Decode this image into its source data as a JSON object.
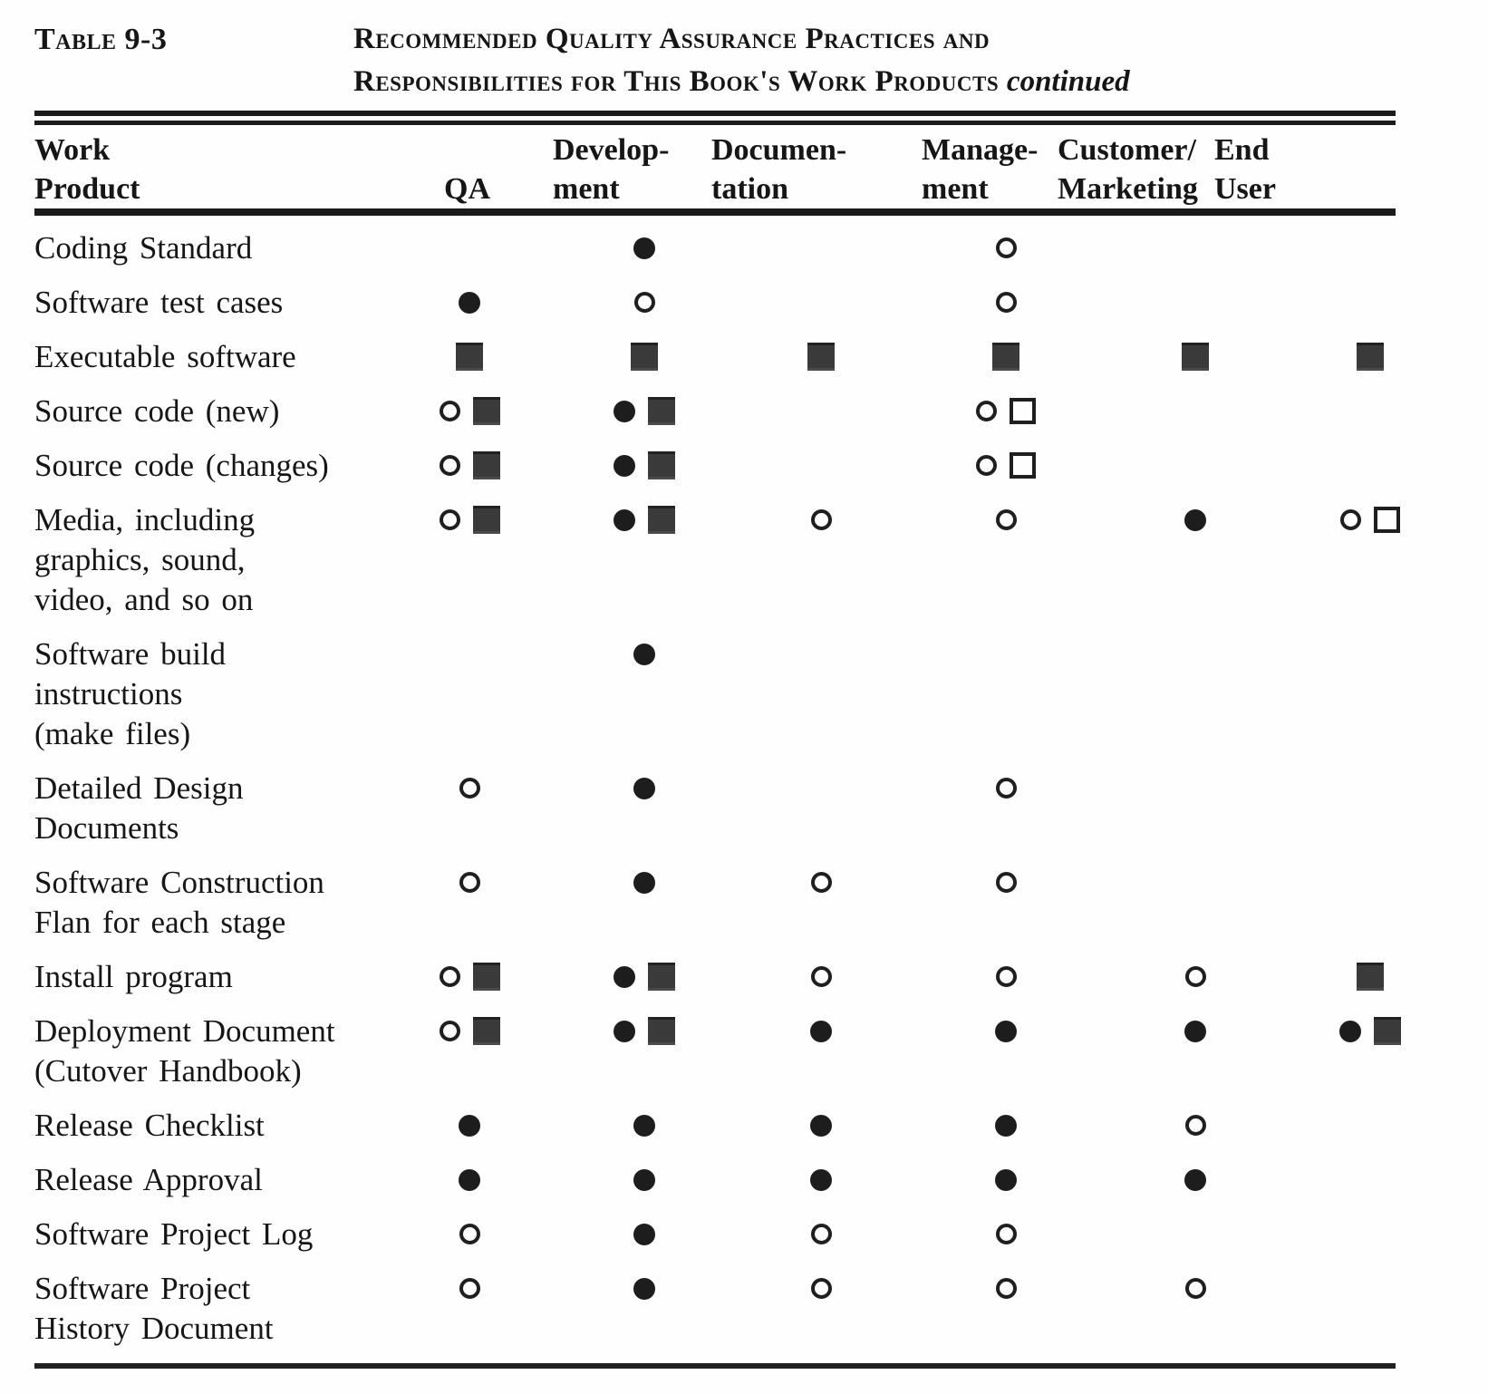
{
  "colors": {
    "paper": "#fefefe",
    "ink": "#161616",
    "square_fill": "#3a3a3a"
  },
  "header": {
    "table_label": "Table 9-3",
    "title_line1": "Recommended Quality Assurance Practices and",
    "title_line2": "Responsibilities for This Book's Work Products",
    "continued": "continued"
  },
  "columns": [
    {
      "key": "work_product",
      "line1": "Work",
      "line2": "Product"
    },
    {
      "key": "qa",
      "line1": "",
      "line2": "QA"
    },
    {
      "key": "development",
      "line1": "Develop-",
      "line2": "ment"
    },
    {
      "key": "documentation",
      "line1": "Documen-",
      "line2": "tation"
    },
    {
      "key": "management",
      "line1": "Manage-",
      "line2": "ment"
    },
    {
      "key": "customer_marketing",
      "line1": "Customer/",
      "line2": "Marketing"
    },
    {
      "key": "end_user",
      "line1": "End",
      "line2": "User"
    }
  ],
  "column_keys": [
    "qa",
    "development",
    "documentation",
    "management",
    "customer_marketing",
    "end_user"
  ],
  "marker_glyphs": {
    "filled-circle": "●",
    "open-circle": "○",
    "filled-square": "■",
    "open-square": "□"
  },
  "rows": [
    {
      "label_lines": [
        "Coding Standard"
      ],
      "markers": {
        "qa": [],
        "development": [
          "filled-circle"
        ],
        "documentation": [],
        "management": [
          "open-circle"
        ],
        "customer_marketing": [],
        "end_user": []
      }
    },
    {
      "label_lines": [
        "Software test cases"
      ],
      "markers": {
        "qa": [
          "filled-circle"
        ],
        "development": [
          "open-circle"
        ],
        "documentation": [],
        "management": [
          "open-circle"
        ],
        "customer_marketing": [],
        "end_user": []
      }
    },
    {
      "label_lines": [
        "Executable software"
      ],
      "markers": {
        "qa": [
          "filled-square"
        ],
        "development": [
          "filled-square"
        ],
        "documentation": [
          "filled-square"
        ],
        "management": [
          "filled-square"
        ],
        "customer_marketing": [
          "filled-square"
        ],
        "end_user": [
          "filled-square"
        ]
      }
    },
    {
      "label_lines": [
        "Source code (new)"
      ],
      "markers": {
        "qa": [
          "open-circle",
          "filled-square"
        ],
        "development": [
          "filled-circle",
          "filled-square"
        ],
        "documentation": [],
        "management": [
          "open-circle",
          "open-square"
        ],
        "customer_marketing": [],
        "end_user": []
      }
    },
    {
      "label_lines": [
        "Source code (changes)"
      ],
      "markers": {
        "qa": [
          "open-circle",
          "filled-square"
        ],
        "development": [
          "filled-circle",
          "filled-square"
        ],
        "documentation": [],
        "management": [
          "open-circle",
          "open-square"
        ],
        "customer_marketing": [],
        "end_user": []
      }
    },
    {
      "label_lines": [
        "Media, including",
        "graphics, sound,",
        "video, and so on"
      ],
      "markers": {
        "qa": [
          "open-circle",
          "filled-square"
        ],
        "development": [
          "filled-circle",
          "filled-square"
        ],
        "documentation": [
          "open-circle"
        ],
        "management": [
          "open-circle"
        ],
        "customer_marketing": [
          "filled-circle"
        ],
        "end_user": [
          "open-circle",
          "open-square"
        ]
      }
    },
    {
      "label_lines": [
        "Software  build",
        "instructions",
        "(make files)"
      ],
      "markers": {
        "qa": [],
        "development": [
          "filled-circle"
        ],
        "documentation": [],
        "management": [],
        "customer_marketing": [],
        "end_user": []
      }
    },
    {
      "label_lines": [
        "Detailed Design",
        "Documents"
      ],
      "markers": {
        "qa": [
          "open-circle"
        ],
        "development": [
          "filled-circle"
        ],
        "documentation": [],
        "management": [
          "open-circle"
        ],
        "customer_marketing": [],
        "end_user": []
      }
    },
    {
      "label_lines": [
        "Software  Construction",
        "Flan for each stage"
      ],
      "markers": {
        "qa": [
          "open-circle"
        ],
        "development": [
          "filled-circle"
        ],
        "documentation": [
          "open-circle"
        ],
        "management": [
          "open-circle"
        ],
        "customer_marketing": [],
        "end_user": []
      }
    },
    {
      "label_lines": [
        "Install program"
      ],
      "markers": {
        "qa": [
          "open-circle",
          "filled-square"
        ],
        "development": [
          "filled-circle",
          "filled-square"
        ],
        "documentation": [
          "open-circle"
        ],
        "management": [
          "open-circle"
        ],
        "customer_marketing": [
          "open-circle"
        ],
        "end_user": [
          "filled-square"
        ]
      }
    },
    {
      "label_lines": [
        "Deployment Document",
        "(Cutover  Handbook)"
      ],
      "markers": {
        "qa": [
          "open-circle",
          "filled-square"
        ],
        "development": [
          "filled-circle",
          "filled-square"
        ],
        "documentation": [
          "filled-circle"
        ],
        "management": [
          "filled-circle"
        ],
        "customer_marketing": [
          "filled-circle"
        ],
        "end_user": [
          "filled-circle",
          "filled-square"
        ]
      }
    },
    {
      "label_lines": [
        "Release  Checklist"
      ],
      "markers": {
        "qa": [
          "filled-circle"
        ],
        "development": [
          "filled-circle"
        ],
        "documentation": [
          "filled-circle"
        ],
        "management": [
          "filled-circle"
        ],
        "customer_marketing": [
          "open-circle"
        ],
        "end_user": []
      }
    },
    {
      "label_lines": [
        "Release  Approval"
      ],
      "markers": {
        "qa": [
          "filled-circle"
        ],
        "development": [
          "filled-circle"
        ],
        "documentation": [
          "filled-circle"
        ],
        "management": [
          "filled-circle"
        ],
        "customer_marketing": [
          "filled-circle"
        ],
        "end_user": []
      }
    },
    {
      "label_lines": [
        "Software Project Log"
      ],
      "markers": {
        "qa": [
          "open-circle"
        ],
        "development": [
          "filled-circle"
        ],
        "documentation": [
          "open-circle"
        ],
        "management": [
          "open-circle"
        ],
        "customer_marketing": [],
        "end_user": []
      }
    },
    {
      "label_lines": [
        "Software Project",
        "History Document"
      ],
      "markers": {
        "qa": [
          "open-circle"
        ],
        "development": [
          "filled-circle"
        ],
        "documentation": [
          "open-circle"
        ],
        "management": [
          "open-circle"
        ],
        "customer_marketing": [
          "open-circle"
        ],
        "end_user": []
      }
    }
  ]
}
